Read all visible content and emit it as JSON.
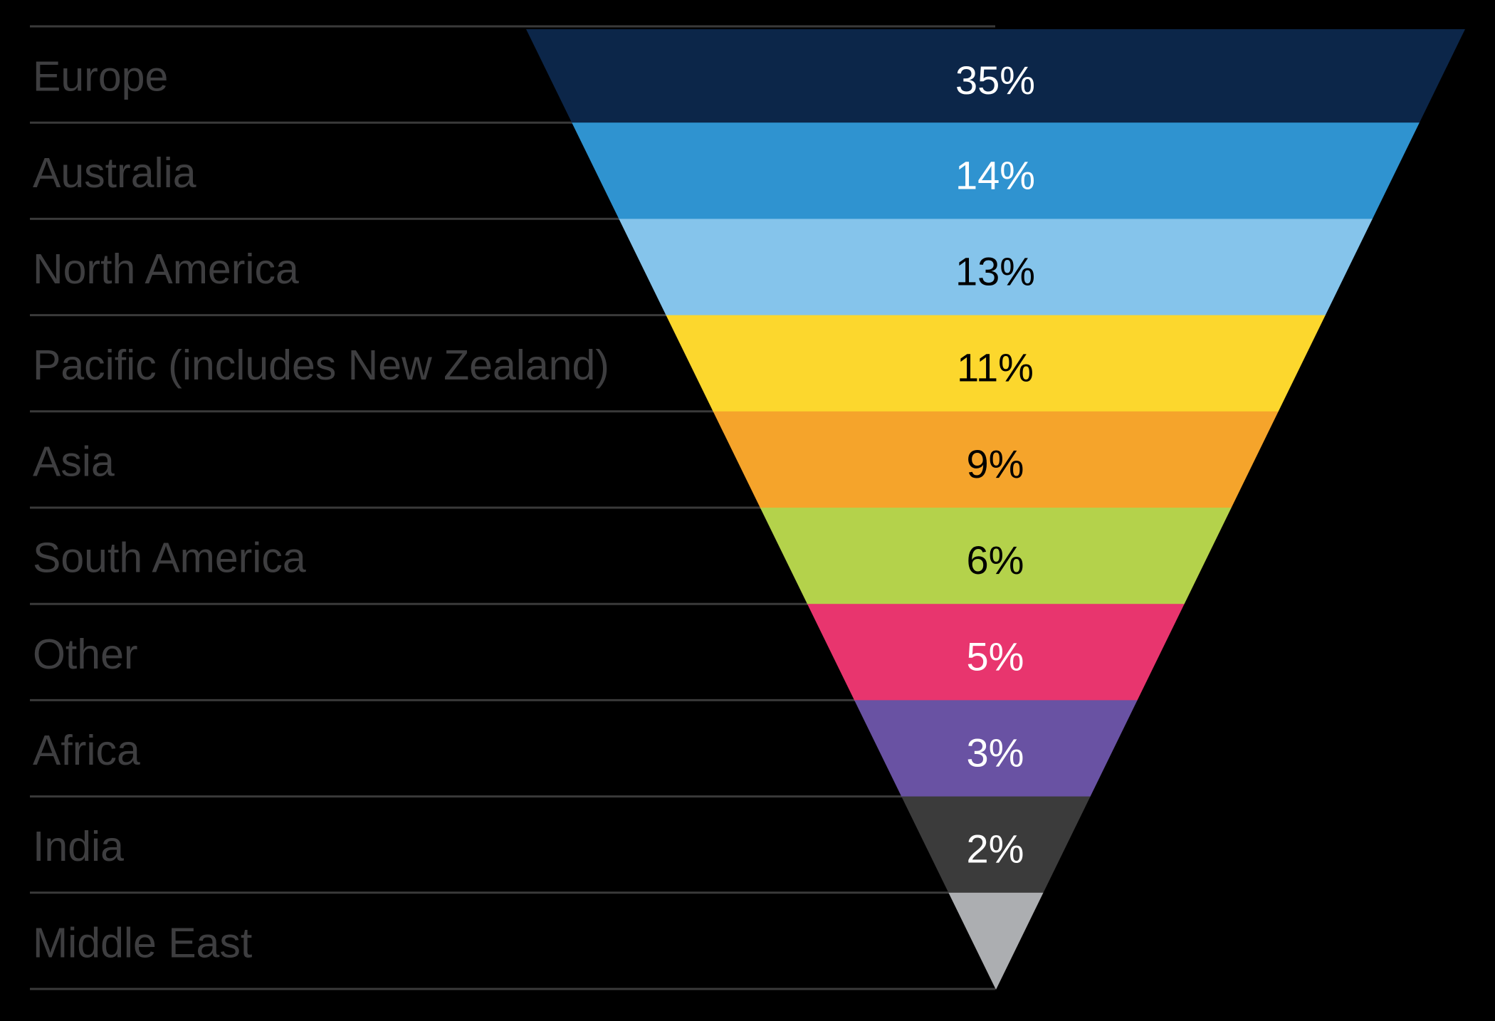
{
  "chart_data": {
    "type": "funnel",
    "orientation": "inverted-pyramid",
    "title": "",
    "background_color": "#000000",
    "divider_line_color": "#3A3A3A",
    "category_label_color": "#3E3E40",
    "legend_position": "left-labels",
    "categories": [
      "Europe",
      "Australia",
      "North America",
      "Pacific (includes New Zealand)",
      "Asia",
      "South America",
      "Other",
      "Africa",
      "India",
      "Middle East"
    ],
    "segments": [
      {
        "label": "Europe",
        "value": 35,
        "value_label": "35%",
        "color": "#0C2649",
        "value_text_color": "#FFFFFF"
      },
      {
        "label": "Australia",
        "value": 14,
        "value_label": "14%",
        "color": "#2F93D0",
        "value_text_color": "#FFFFFF"
      },
      {
        "label": "North America",
        "value": 13,
        "value_label": "13%",
        "color": "#85C4EB",
        "value_text_color": "#000000"
      },
      {
        "label": "Pacific (includes New Zealand)",
        "value": 11,
        "value_label": "11%",
        "color": "#FCD72D",
        "value_text_color": "#000000"
      },
      {
        "label": "Asia",
        "value": 9,
        "value_label": "9%",
        "color": "#F5A42B",
        "value_text_color": "#000000"
      },
      {
        "label": "South America",
        "value": 6,
        "value_label": "6%",
        "color": "#B4D24B",
        "value_text_color": "#000000"
      },
      {
        "label": "Other",
        "value": 5,
        "value_label": "5%",
        "color": "#E8356E",
        "value_text_color": "#FFFFFF"
      },
      {
        "label": "Africa",
        "value": 3,
        "value_label": "3%",
        "color": "#6952A3",
        "value_text_color": "#FFFFFF"
      },
      {
        "label": "India",
        "value": 2,
        "value_label": "2%",
        "color": "#3B3B3B",
        "value_text_color": "#FFFFFF"
      },
      {
        "label": "Middle East",
        "value": null,
        "value_label": "",
        "color": "#ACAEB1",
        "value_text_color": ""
      }
    ]
  }
}
